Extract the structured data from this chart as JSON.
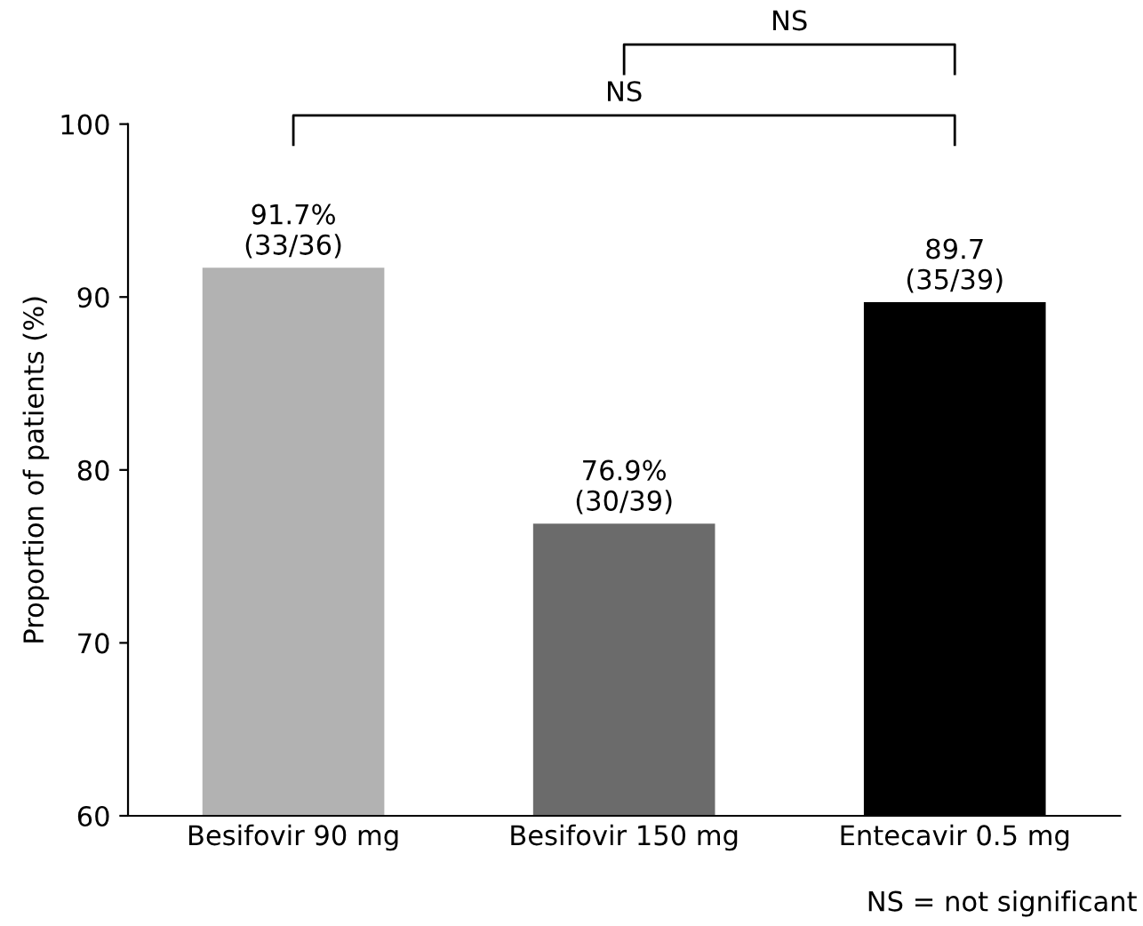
{
  "chart_data": {
    "type": "bar",
    "ylabel": "Proportion of patients (%)",
    "categories": [
      "Besifovir 90 mg",
      "Besifovir 150 mg",
      "Entecavir 0.5 mg"
    ],
    "values": [
      91.7,
      76.9,
      89.7
    ],
    "colors": [
      "#b2b2b2",
      "#6b6b6b",
      "#000000"
    ],
    "value_labels": [
      "91.7%\n(33/36)",
      "76.9%\n(30/39)",
      "89.7\n(35/39)"
    ],
    "ylim": [
      60,
      100
    ],
    "yticks": [
      60,
      70,
      80,
      90,
      100
    ],
    "grid": false,
    "legend": false,
    "annotations": [
      "NS",
      "NS",
      "NS = not significant"
    ]
  }
}
